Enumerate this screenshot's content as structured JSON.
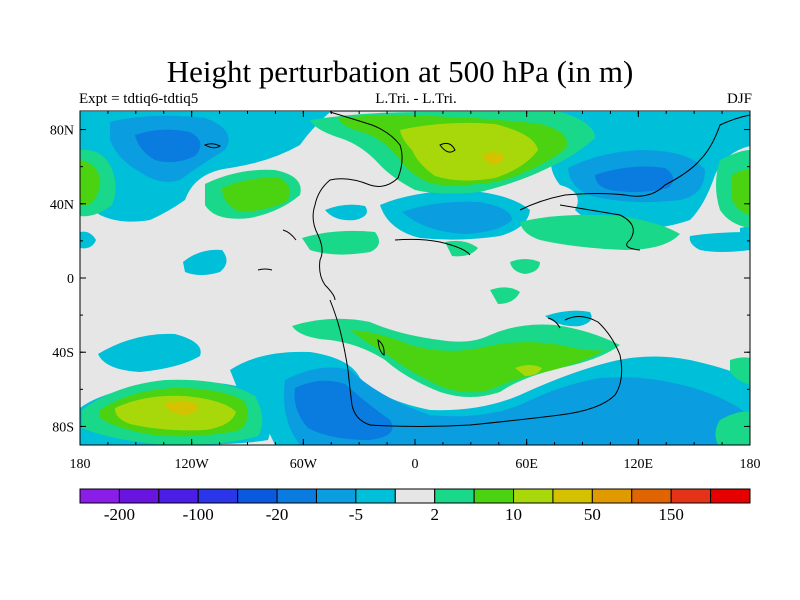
{
  "title": "Height perturbation at 500 hPa (in m)",
  "subtitle_left": "Expt = tdtiq6-tdtiq5",
  "subtitle_center": "L.Tri. - L.Tri.",
  "subtitle_right": "DJF",
  "axes": {
    "lon_ticks": [
      "180",
      "120W",
      "60W",
      "0",
      "60E",
      "120E",
      "180"
    ],
    "lat_ticks": [
      "80N",
      "40N",
      "0",
      "40S",
      "80S"
    ]
  },
  "colors": {
    "background": "#e6e6e6",
    "light_blue": "#00bfd8",
    "mid_blue": "#0a9ee0",
    "dark_blue": "#0a7ce0",
    "teal_green": "#1ad88a",
    "green": "#4bd210",
    "yellow_green": "#a8d80a",
    "gold": "#d4c200",
    "coast": "#000000"
  },
  "colorbar": {
    "colors": [
      "#8a1ee8",
      "#6a14e0",
      "#4a1ee6",
      "#2a36e8",
      "#0a5ae0",
      "#0a7ce0",
      "#0a9ee0",
      "#00bfd8",
      "#e6e6e6",
      "#1ad88a",
      "#4bd210",
      "#a8d80a",
      "#d4c200",
      "#e09a00",
      "#e06400",
      "#e43418",
      "#e60000"
    ],
    "labels": [
      "-200",
      "-100",
      "-20",
      "-5",
      "2",
      "10",
      "50",
      "150"
    ]
  }
}
